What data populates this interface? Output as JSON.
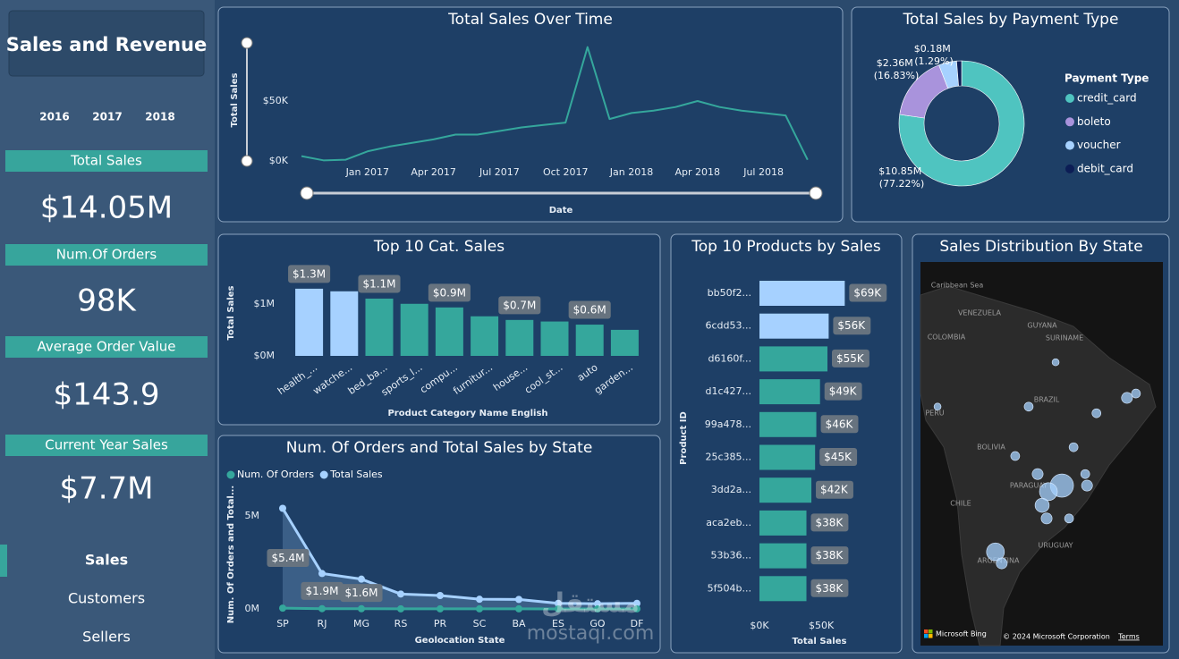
{
  "sidebar": {
    "title": "Sales and Revenue",
    "years": [
      "2016",
      "2017",
      "2018"
    ],
    "kpis": [
      {
        "label": "Total Sales",
        "value": "$14.05M"
      },
      {
        "label": "Num.Of Orders",
        "value": "98K"
      },
      {
        "label": "Average Order Value",
        "value": "$143.9"
      },
      {
        "label": "Current Year Sales",
        "value": "$7.7M"
      }
    ],
    "nav": [
      "Sales",
      "Customers",
      "Sellers"
    ]
  },
  "watermark": [
    "مستقل",
    "mostaqi.com"
  ],
  "chart_data": [
    {
      "type": "line",
      "title": "Total Sales Over Time",
      "x_label": "Date",
      "y_label": "Total Sales",
      "color": "#35a79c",
      "categories": [
        null,
        null,
        null,
        "Jan 2017",
        null,
        null,
        "Apr 2017",
        null,
        null,
        "Jul 2017",
        null,
        null,
        "Oct 2017",
        null,
        null,
        "Jan 2018",
        null,
        null,
        "Apr 2018",
        null,
        null,
        "Jul 2018",
        null,
        null
      ],
      "values": [
        4000,
        500,
        1000,
        8000,
        12000,
        15000,
        18000,
        22000,
        22000,
        25000,
        28000,
        30000,
        32000,
        95000,
        35000,
        40000,
        42000,
        45000,
        50000,
        45000,
        42000,
        40000,
        38000,
        1000
      ],
      "ylim": [
        0,
        100000
      ],
      "yticks": [
        {
          "value": 0,
          "label": "$0K"
        },
        {
          "value": 50000,
          "label": "$50K"
        }
      ]
    },
    {
      "type": "donut",
      "title": "Total Sales by Payment Type",
      "legend_title": "Payment Type",
      "categories": [
        "credit_card",
        "boleto",
        "voucher",
        "debit_card"
      ],
      "values": [
        10.85,
        2.36,
        0.65,
        0.18
      ],
      "value_labels": [
        "$10.85M (77.22%)",
        "$2.36M (16.83%)",
        null,
        "$0.18M (1.29%)"
      ],
      "colors": [
        "#4fc4c0",
        "#a993dc",
        "#a6d1ff",
        "#0c1d55"
      ]
    },
    {
      "type": "bar",
      "title": "Top 10 Cat. Sales",
      "x_label": "Product Category Name English",
      "y_label": "Total Sales",
      "categories": [
        "health_...",
        "watche...",
        "bed_ba...",
        "sports_l...",
        "compu...",
        "furnitur...",
        "house...",
        "cool_st...",
        "auto",
        "garden..."
      ],
      "values": [
        1290000,
        1240000,
        1100000,
        1000000,
        930000,
        760000,
        690000,
        660000,
        600000,
        500000
      ],
      "value_labels": [
        "$1.3M",
        null,
        "$1.1M",
        null,
        "$0.9M",
        null,
        "$0.7M",
        null,
        "$0.6M",
        null
      ],
      "colors": [
        "#a6d1ff",
        "#a6d1ff",
        "#35a79c",
        "#35a79c",
        "#35a79c",
        "#35a79c",
        "#35a79c",
        "#35a79c",
        "#35a79c",
        "#35a79c"
      ],
      "ylim": [
        0,
        1700000
      ],
      "yticks": [
        {
          "value": 0,
          "label": "$0M"
        },
        {
          "value": 1000000,
          "label": "$1M"
        }
      ]
    },
    {
      "type": "hbar",
      "title": "Top 10 Products by Sales",
      "x_label": "Total Sales",
      "y_label": "Product ID",
      "categories": [
        "bb50f2...",
        "6cdd53...",
        "d6160f...",
        "d1c427...",
        "99a478...",
        "25c385...",
        "3dd2a...",
        "aca2eb...",
        "53b36...",
        "5f504b..."
      ],
      "values": [
        69000,
        56000,
        55000,
        49000,
        46000,
        45000,
        42000,
        38000,
        38000,
        38000
      ],
      "value_labels": [
        "$69K",
        "$56K",
        "$55K",
        "$49K",
        "$46K",
        "$45K",
        "$42K",
        "$38K",
        "$38K",
        "$38K"
      ],
      "colors": [
        "#a6d1ff",
        "#a6d1ff",
        "#35a79c",
        "#35a79c",
        "#35a79c",
        "#35a79c",
        "#35a79c",
        "#35a79c",
        "#35a79c",
        "#35a79c"
      ],
      "xlim": [
        0,
        110000
      ],
      "xticks": [
        {
          "value": 0,
          "label": "$0K"
        },
        {
          "value": 50000,
          "label": "$50K"
        }
      ]
    },
    {
      "type": "line",
      "title": "Num. Of Orders and Total Sales by State",
      "x_label": "Geolocation State",
      "y_label": "Num. Of Orders and Total...",
      "categories": [
        "SP",
        "RJ",
        "MG",
        "RS",
        "PR",
        "SC",
        "BA",
        "ES",
        "GO",
        "DF"
      ],
      "series": [
        {
          "name": "Num. Of Orders",
          "color": "#35a79c",
          "values": [
            41700,
            12800,
            11600,
            5500,
            5000,
            3600,
            3400,
            2000,
            2000,
            2100
          ]
        },
        {
          "name": "Total Sales",
          "color": "#a6d1ff",
          "values": [
            5400000,
            1900000,
            1600000,
            800000,
            720000,
            520000,
            510000,
            300000,
            280000,
            300000
          ],
          "value_labels": [
            "$5.4M",
            "$1.9M",
            "$1.6M",
            null,
            null,
            null,
            null,
            null,
            null,
            null
          ]
        }
      ],
      "ylim": [
        0,
        6000000
      ],
      "yticks": [
        {
          "value": 0,
          "label": "0M"
        },
        {
          "value": 5000000,
          "label": "5M"
        }
      ]
    },
    {
      "type": "map",
      "title": "Sales Distribution By State",
      "color": "#a6d1ff",
      "x": [
        -53.5,
        -56.5,
        -57.9,
        -56.9,
        -68.3,
        -66.9,
        -47.9,
        -48.3,
        -58.9,
        -50.9,
        -45.8,
        -39.0,
        -37.0,
        -60.9,
        -63.9,
        -54.9,
        -81.2,
        -51.9
      ],
      "values": [
        -27.8,
        -28.9,
        -31.4,
        -33.8,
        -39.9,
        -42.0,
        -27.8,
        -25.7,
        -25.7,
        -20.8,
        -14.6,
        -11.8,
        -11.0,
        -13.4,
        -22.4,
        -5.3,
        -13.4,
        -33.8
      ],
      "sizes": [
        5.4,
        3.2,
        2.0,
        1.2,
        3.2,
        1.2,
        1.2,
        0.8,
        1.2,
        0.8,
        0.8,
        1.2,
        0.8,
        0.8,
        0.8,
        0.5,
        0.5,
        0.8
      ],
      "xlim": [
        -85,
        -31
      ],
      "ylim": [
        -57,
        13
      ],
      "place_labels": [
        "Caribbean Sea",
        "VENEZUELA",
        "GUYANA",
        "SURINAME",
        "COLOMBIA",
        "BRAZIL",
        "PERU",
        "BOLIVIA",
        "PARAGUAY",
        "CHILE",
        "URUGUAY",
        "ARGENTINA"
      ],
      "attribution": [
        "Microsoft Bing",
        "© 2024 Microsoft Corporation",
        "Terms"
      ]
    }
  ]
}
